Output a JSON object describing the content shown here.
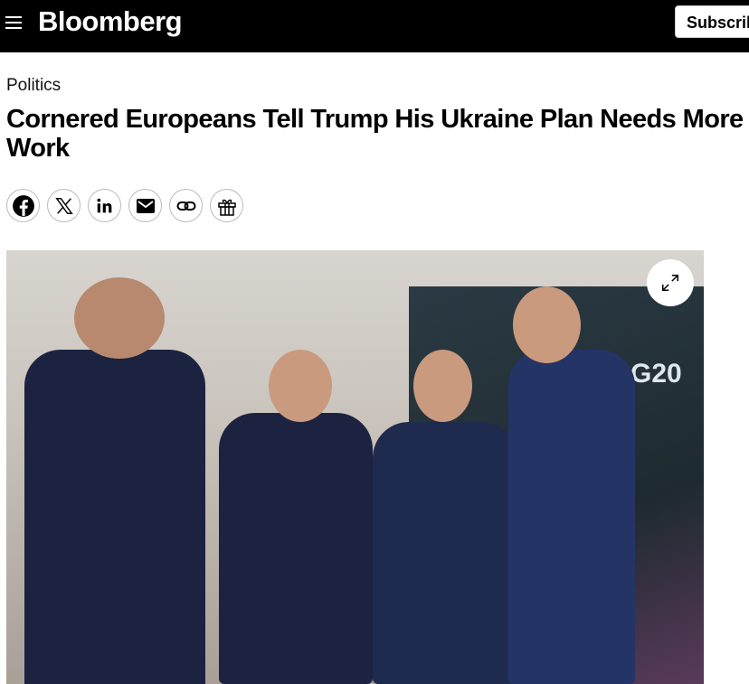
{
  "header": {
    "logo": "Bloomberg",
    "subscribe_label": "Subscribe",
    "menu_icon": "hamburger-icon"
  },
  "article": {
    "kicker": "Politics",
    "title_lines": [
      "Cornered Europeans Tell Trump His Ukraine Plan Needs More",
      "Work"
    ],
    "share": [
      "facebook-icon",
      "x-icon",
      "linkedin-icon",
      "email-icon",
      "link-icon",
      "gift-icon"
    ],
    "photo": {
      "sign_text": "G20",
      "expand_icon": "expand-icon"
    }
  }
}
